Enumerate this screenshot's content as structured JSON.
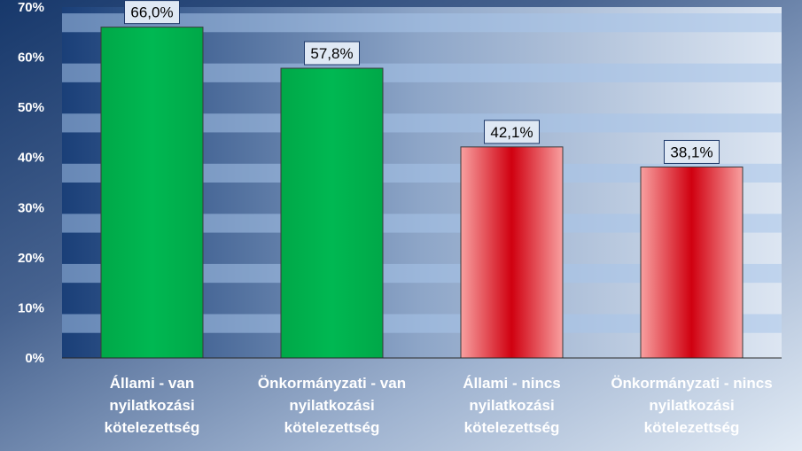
{
  "chart_data": {
    "type": "bar",
    "categories": [
      [
        "Állami - van",
        "nyilatkozási",
        "kötelezettség"
      ],
      [
        "Önkormányzati - van",
        "nyilatkozási",
        "kötelezettség"
      ],
      [
        "Állami - nincs",
        "nyilatkozási",
        "kötelezettség"
      ],
      [
        "Önkormányzati - nincs",
        "nyilatkozási",
        "kötelezettség"
      ]
    ],
    "values": [
      66.0,
      57.8,
      42.1,
      38.1
    ],
    "data_labels": [
      "66,0%",
      "57,8%",
      "42,1%",
      "38,1%"
    ],
    "bar_colors": [
      "#00b050",
      "#00b050",
      "#e02020",
      "#e02020"
    ],
    "yticks": [
      "0%",
      "10%",
      "20%",
      "30%",
      "40%",
      "50%",
      "60%",
      "70%"
    ],
    "ylim": [
      0,
      70
    ],
    "title": "",
    "xlabel": "",
    "ylabel": "",
    "grid": true,
    "legend": "none"
  }
}
